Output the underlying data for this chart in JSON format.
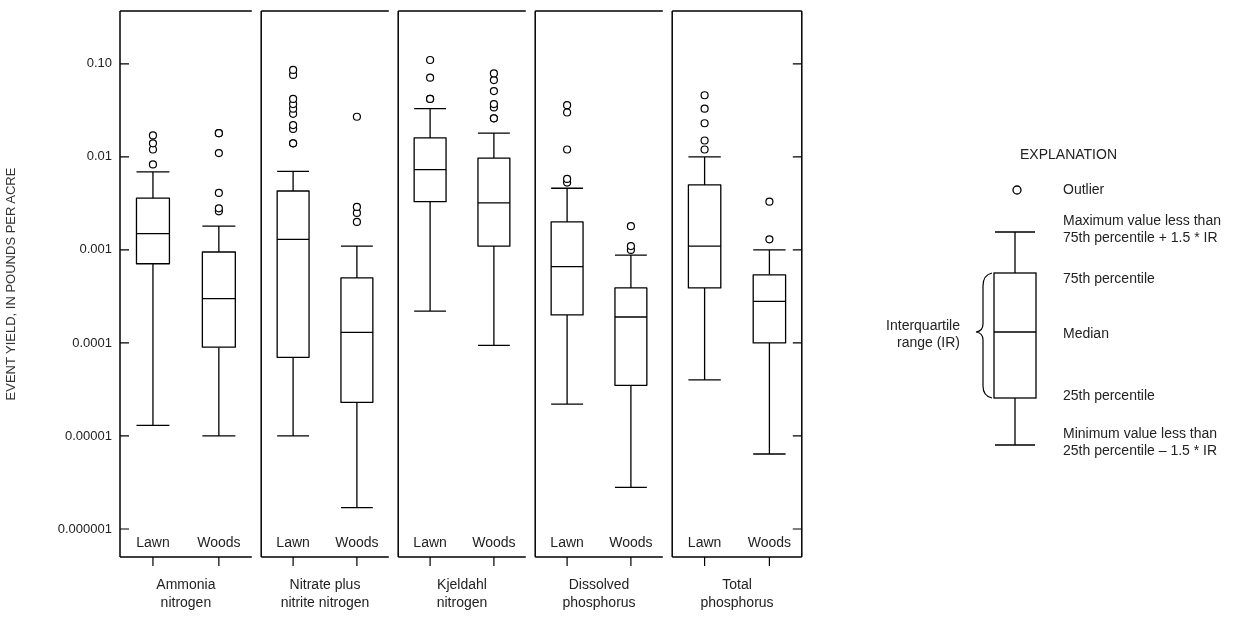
{
  "chart_data": [
    {
      "type": "box",
      "xlabel": "Ammonia nitrogen",
      "ylabel": "EVENT YIELD, IN POUNDS PER ACRE",
      "categories": [
        "Lawn",
        "Woods"
      ],
      "log": true,
      "marker": "circle",
      "ylim": [
        5e-07,
        0.37
      ],
      "yticks": [
        {
          "value": 0.1,
          "label": "0.10"
        },
        0.01,
        0.001,
        0.0001,
        {
          "value": 1e-05,
          "label": "0.00001"
        },
        {
          "value": 1e-06,
          "label": "0.000001"
        }
      ],
      "boxes": [
        {
          "low": 1.3e-05,
          "q1": 0.00071,
          "median": 0.0015,
          "q3": 0.0036,
          "high": 0.0069,
          "outliers": [
            0.0083,
            0.012,
            0.014,
            0.017
          ]
        },
        {
          "low": 1e-05,
          "q1": 9e-05,
          "median": 0.0003,
          "q3": 0.00095,
          "high": 0.0018,
          "outliers": [
            0.0026,
            0.0028,
            0.0041,
            0.011,
            0.018,
            0.018
          ]
        }
      ]
    },
    {
      "type": "box",
      "xlabel": "Nitrate plus nitrite nitrogen",
      "categories": [
        "Lawn",
        "Woods"
      ],
      "log": true,
      "marker": "circle",
      "tick_labels": "x",
      "ylim": [
        5e-07,
        0.37
      ],
      "yticks": [
        0.1,
        0.01,
        0.001,
        0.0001,
        1e-05,
        1e-06
      ],
      "boxes": [
        {
          "low": 1e-05,
          "q1": 7e-05,
          "median": 0.0013,
          "q3": 0.0043,
          "high": 0.007,
          "outliers": [
            0.014,
            0.014,
            0.02,
            0.022,
            0.029,
            0.033,
            0.037,
            0.042,
            0.076,
            0.086
          ]
        },
        {
          "low": 1.7e-06,
          "q1": 2.3e-05,
          "median": 0.00013,
          "q3": 0.0005,
          "high": 0.0011,
          "outliers": [
            0.002,
            0.0025,
            0.0029,
            0.027
          ]
        }
      ]
    },
    {
      "type": "box",
      "xlabel": "Kjeldahl nitrogen",
      "categories": [
        "Lawn",
        "Woods"
      ],
      "log": true,
      "marker": "circle",
      "tick_labels": "x",
      "ylim": [
        5e-07,
        0.37
      ],
      "yticks": [
        0.1,
        0.01,
        0.001,
        0.0001,
        1e-05,
        1e-06
      ],
      "boxes": [
        {
          "low": 0.00022,
          "q1": 0.0033,
          "median": 0.0073,
          "q3": 0.016,
          "high": 0.033,
          "outliers": [
            0.042,
            0.042,
            0.071,
            0.11
          ]
        },
        {
          "low": 9.4e-05,
          "q1": 0.0011,
          "median": 0.0032,
          "q3": 0.0097,
          "high": 0.018,
          "outliers": [
            0.026,
            0.026,
            0.034,
            0.037,
            0.051,
            0.067,
            0.079
          ]
        }
      ]
    },
    {
      "type": "box",
      "xlabel": "Dissolved phosphorus",
      "categories": [
        "Lawn",
        "Woods"
      ],
      "log": true,
      "marker": "circle",
      "tick_labels": "x",
      "ylim": [
        5e-07,
        0.37
      ],
      "yticks": [
        0.1,
        0.01,
        0.001,
        0.0001,
        1e-05,
        1e-06
      ],
      "boxes": [
        {
          "low": 2.2e-05,
          "q1": 0.0002,
          "median": 0.00066,
          "q3": 0.002,
          "high": 0.0046,
          "outliers": [
            0.0053,
            0.0058,
            0.012,
            0.03,
            0.036
          ]
        },
        {
          "low": 2.8e-06,
          "q1": 3.5e-05,
          "median": 0.00019,
          "q3": 0.00039,
          "high": 0.00088,
          "outliers": [
            0.001,
            0.0011,
            0.0018
          ]
        }
      ]
    },
    {
      "type": "box",
      "xlabel": "Total phosphorus",
      "categories": [
        "Lawn",
        "Woods"
      ],
      "log": true,
      "marker": "circle",
      "tick_labels": "x",
      "ylim": [
        5e-07,
        0.37
      ],
      "yticks": [
        0.1,
        0.01,
        0.001,
        0.0001,
        1e-05,
        1e-06
      ],
      "boxes": [
        {
          "low": 4e-05,
          "q1": 0.00039,
          "median": 0.0011,
          "q3": 0.005,
          "high": 0.01,
          "outliers": [
            0.012,
            0.015,
            0.023,
            0.033,
            0.046
          ]
        },
        {
          "low": 6.4e-06,
          "q1": 0.0001,
          "median": 0.00028,
          "q3": 0.00054,
          "high": 0.001,
          "outliers": [
            0.0013,
            0.0033
          ]
        }
      ]
    },
    {
      "type": "other",
      "title": "EXPLANATION",
      "annotations": [
        "Outlier",
        "Maximum value less than 75th percentile + 1.5 * IR",
        "75th percentile",
        "Median",
        "25th percentile",
        "Minimum value less than 25th percentile – 1.5 * IR",
        "Interquartile range (IR)"
      ]
    }
  ]
}
